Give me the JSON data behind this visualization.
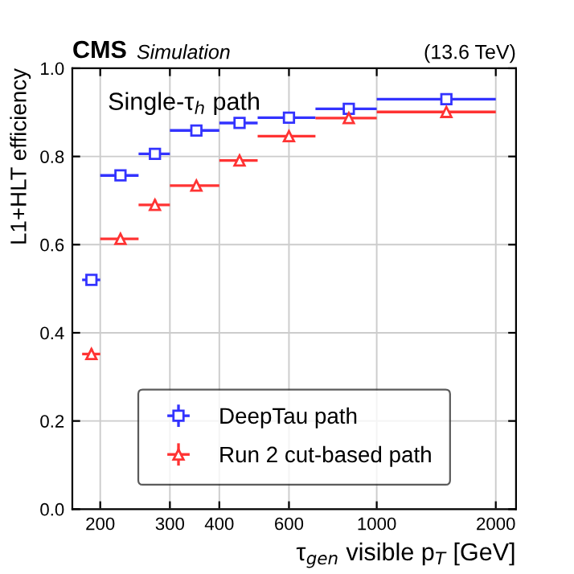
{
  "chart_data": {
    "type": "scatter",
    "title": "CMS",
    "subtitle": "Simulation",
    "xlabel": "τ$_{gen}$ visible p$_{T}$ [GeV]",
    "ylabel": "L1+HLT efficiency",
    "annotations": [
      "(13.6 TeV)",
      "Single-τ$_{h}$ path"
    ],
    "x": [
      190,
      225,
      275,
      350,
      450,
      600,
      850,
      1500
    ],
    "series": [
      {
        "name": "DeepTau path",
        "color": "#3333ff",
        "marker": "square",
        "values": [
          0.52,
          0.757,
          0.806,
          0.859,
          0.876,
          0.888,
          0.908,
          0.93
        ],
        "xerrors": [
          10,
          25,
          25,
          50,
          50,
          100,
          150,
          500
        ],
        "errors": [
          0.012,
          0.01,
          0.012,
          0.009,
          0.009,
          0.007,
          0.007,
          0.005
        ]
      },
      {
        "name": "Run 2 cut-based path",
        "color": "#ff3333",
        "marker": "triangle",
        "values": [
          0.352,
          0.613,
          0.69,
          0.734,
          0.791,
          0.846,
          0.887,
          0.901
        ],
        "xerrors": [
          10,
          25,
          25,
          50,
          50,
          100,
          150,
          500
        ],
        "errors": [
          0.012,
          0.01,
          0.012,
          0.009,
          0.009,
          0.007,
          0.007,
          0.005
        ]
      }
    ],
    "log": "x",
    "xlim": [
      170,
      2250
    ],
    "xticks": [
      200,
      300,
      400,
      600,
      1000,
      2000
    ],
    "ylim": [
      0,
      1
    ],
    "yticks": [
      {
        "value": 0,
        "label": "0.0"
      },
      0.2,
      0.4,
      0.6,
      0.8,
      {
        "value": 1,
        "label": "1.0"
      }
    ],
    "grid": true,
    "legend": "bottom"
  }
}
